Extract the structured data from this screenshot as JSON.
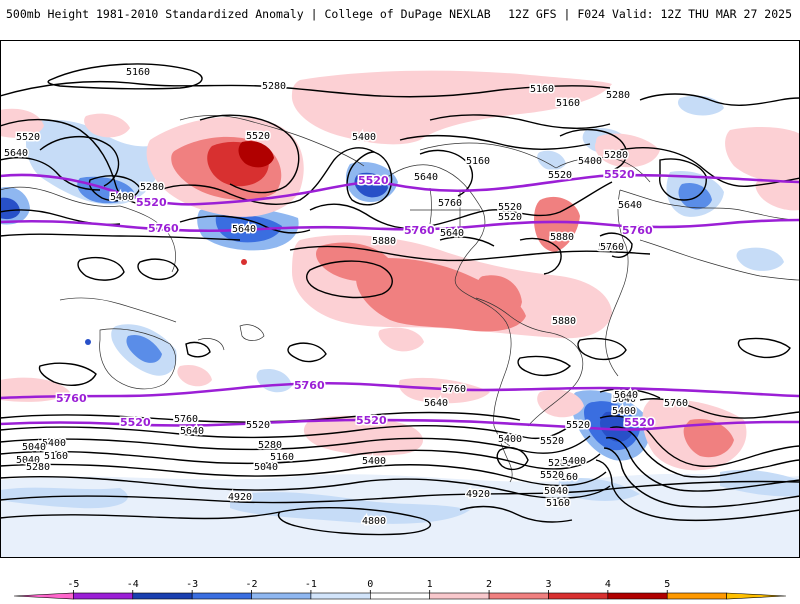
{
  "header": {
    "title": "500mb Height 1981-2010 Standardized Anomaly | College of DuPage NEXLAB",
    "run_info": "12Z GFS | F024 Valid: 12Z THU MAR 27 2025"
  },
  "map": {
    "contour_labels_black": [
      "5160",
      "5280",
      "5160",
      "5160",
      "5280",
      "5520",
      "5640",
      "5280",
      "5400",
      "5520",
      "5640",
      "5160",
      "5400",
      "5280",
      "5400",
      "5520",
      "5640",
      "5760",
      "5880",
      "5880",
      "5880",
      "5760",
      "5640",
      "5760",
      "5640",
      "5520",
      "5400",
      "5280",
      "5160",
      "5040",
      "4920",
      "4800",
      "4920",
      "5040",
      "5160",
      "5280",
      "5400",
      "5520",
      "5760",
      "5640",
      "5520",
      "5400",
      "5160",
      "5040",
      "5760",
      "5640",
      "5760",
      "5640",
      "5520",
      "5400",
      "5280",
      "5160",
      "5040",
      "5640",
      "5400",
      "5520",
      "5520"
    ],
    "contour_labels_thick": [
      "5520",
      "5760",
      "5520",
      "5760",
      "5520",
      "5760",
      "5520",
      "5760",
      "5760",
      "5520",
      "5520"
    ],
    "colors": {
      "thick_contour": "#9b1fd6",
      "neg_1": "#c6dcf7",
      "neg_2": "#5a8de8",
      "neg_3": "#2850c8",
      "pos_1": "#fcd0d4",
      "pos_2": "#f08080",
      "pos_3": "#d83030",
      "pos_4": "#b00000"
    }
  },
  "colorbar": {
    "tick_labels": [
      "-5",
      "-4",
      "-3",
      "-2",
      "-1",
      "0",
      "1",
      "2",
      "3",
      "4",
      "5"
    ],
    "colors": [
      "#ff66cc",
      "#9b1fd6",
      "#1a3fb0",
      "#3a6ee0",
      "#8fb7f0",
      "#d2e4fa",
      "#ffffff",
      "#f8c8cc",
      "#f08080",
      "#d83030",
      "#b00000",
      "#ff9900",
      "#ffc000"
    ]
  }
}
